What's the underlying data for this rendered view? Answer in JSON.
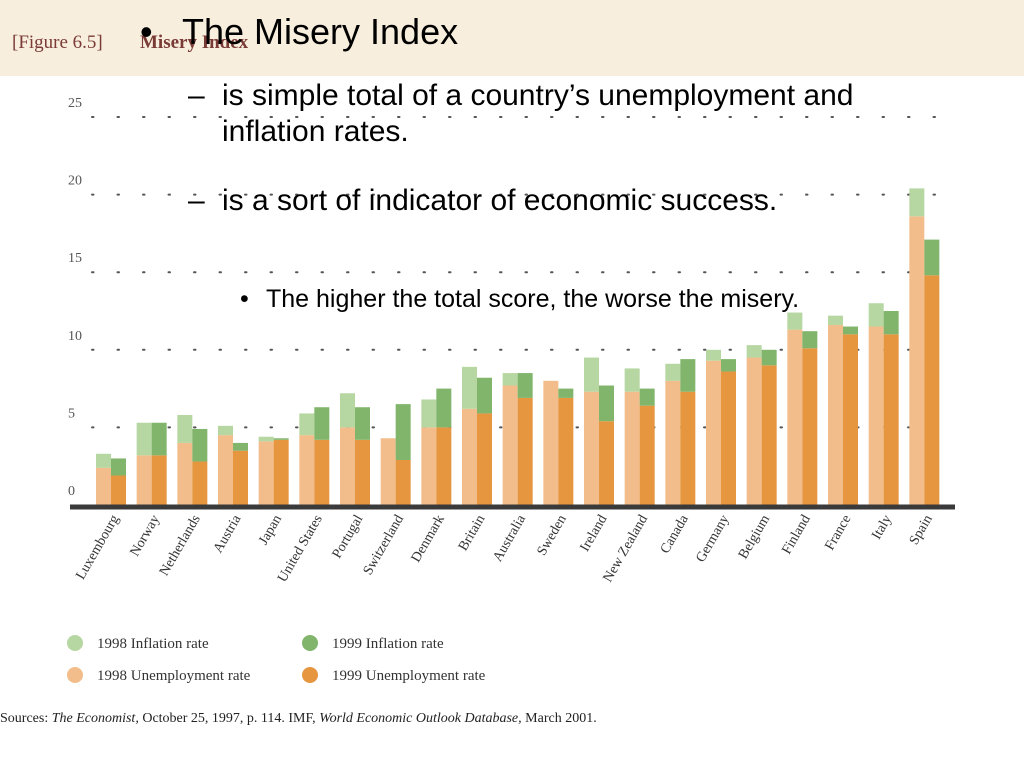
{
  "chart_data": {
    "type": "bar",
    "figure_label": "[Figure 6.5]",
    "title": "Misery Index",
    "categories": [
      "Luxembourg",
      "Norway",
      "Netherlands",
      "Austria",
      "Japan",
      "United States",
      "Portugal",
      "Switzerland",
      "Denmark",
      "Britain",
      "Australia",
      "Sweden",
      "Ireland",
      "New Zealand",
      "Canada",
      "Germany",
      "Belgium",
      "Finland",
      "France",
      "Italy",
      "Spain"
    ],
    "series": [
      {
        "name": "1998 Unemployment rate",
        "color": "#f2bd8a",
        "bar_group": 0,
        "values": [
          2.4,
          3.2,
          4.0,
          4.5,
          4.1,
          4.5,
          5.0,
          4.3,
          5.0,
          6.2,
          7.7,
          8.0,
          7.3,
          7.3,
          8.0,
          9.3,
          9.5,
          11.3,
          11.6,
          11.5,
          18.6
        ]
      },
      {
        "name": "1999 Unemployment rate",
        "color": "#e5963f",
        "bar_group": 1,
        "values": [
          1.9,
          3.2,
          2.8,
          3.5,
          4.2,
          4.2,
          4.2,
          2.9,
          5.0,
          5.9,
          6.9,
          6.9,
          5.4,
          6.4,
          7.3,
          8.6,
          9.0,
          10.1,
          11.0,
          11.0,
          14.8
        ]
      },
      {
        "name": "1998 Inflation rate",
        "color": "#b6d7a2",
        "bar_group": 0,
        "values": [
          0.9,
          2.1,
          1.8,
          0.6,
          0.3,
          1.4,
          2.2,
          0.0,
          1.8,
          2.7,
          0.8,
          0.0,
          2.2,
          1.5,
          1.1,
          0.7,
          0.8,
          1.1,
          0.6,
          1.5,
          1.8
        ]
      },
      {
        "name": "1999 Inflation rate",
        "color": "#80b56b",
        "bar_group": 1,
        "values": [
          1.1,
          2.1,
          2.1,
          0.5,
          0.1,
          2.1,
          2.1,
          3.6,
          2.5,
          2.3,
          1.6,
          0.6,
          2.3,
          1.1,
          2.1,
          0.8,
          1.0,
          1.1,
          0.5,
          1.5,
          2.3
        ]
      }
    ],
    "ylim": [
      0,
      25
    ],
    "yticks": [
      0,
      5,
      10,
      15,
      20,
      25
    ],
    "grid": true,
    "source": [
      {
        "text": "Sources:",
        "italic": false
      },
      {
        "text": "The Economist,",
        "italic": true
      },
      {
        "text": "October 25, 1997, p. 114. IMF,",
        "italic": false
      },
      {
        "text": "World Economic Outlook Database,",
        "italic": true
      },
      {
        "text": "March 2001.",
        "italic": false
      }
    ]
  },
  "slide": {
    "bullets": [
      {
        "level": 1,
        "marker": "•",
        "text": "The Misery Index"
      },
      {
        "level": 2,
        "marker": "–",
        "text": "is simple total of a country’s unemployment and inflation rates."
      },
      {
        "level": 2,
        "marker": "–",
        "text": "is a sort of indicator of economic success."
      },
      {
        "level": 3,
        "marker": "•",
        "text": "The higher the total score, the worse the misery."
      }
    ]
  }
}
